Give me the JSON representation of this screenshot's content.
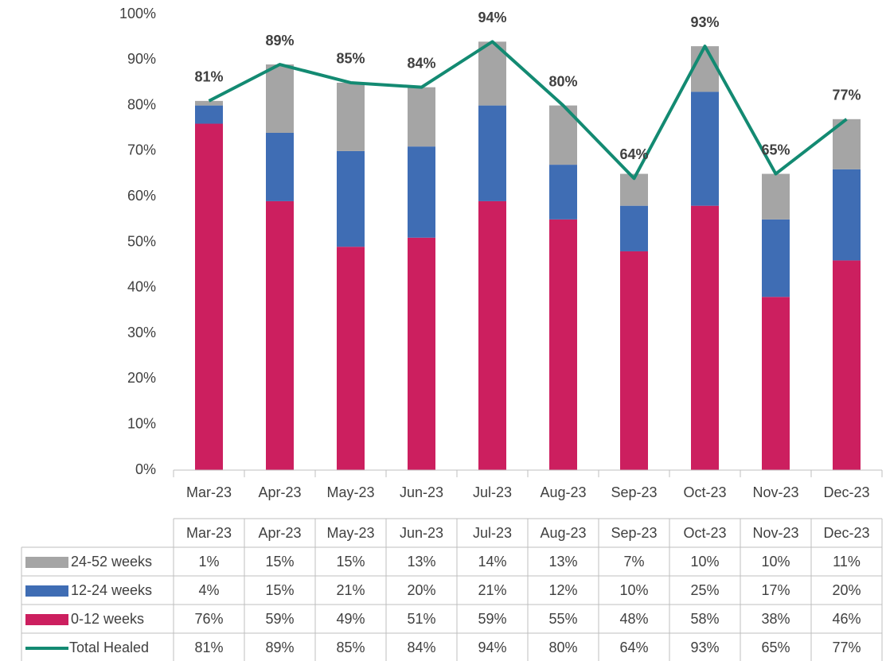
{
  "chart_data": {
    "type": "bar",
    "categories": [
      "Mar-23",
      "Apr-23",
      "May-23",
      "Jun-23",
      "Jul-23",
      "Aug-23",
      "Sep-23",
      "Oct-23",
      "Nov-23",
      "Dec-23"
    ],
    "series": [
      {
        "name": "0-12 weeks",
        "type": "bar",
        "color": "#cc1f5f",
        "values": [
          76,
          59,
          49,
          51,
          59,
          55,
          48,
          58,
          38,
          46
        ],
        "value_labels": [
          "76%",
          "59%",
          "49%",
          "51%",
          "59%",
          "55%",
          "48%",
          "58%",
          "38%",
          "46%"
        ]
      },
      {
        "name": "12-24 weeks",
        "type": "bar",
        "color": "#3f6db4",
        "values": [
          4,
          15,
          21,
          20,
          21,
          12,
          10,
          25,
          17,
          20
        ],
        "value_labels": [
          "4%",
          "15%",
          "21%",
          "20%",
          "21%",
          "12%",
          "10%",
          "25%",
          "17%",
          "20%"
        ]
      },
      {
        "name": "24-52 weeks",
        "type": "bar",
        "color": "#a5a5a5",
        "values": [
          1,
          15,
          15,
          13,
          14,
          13,
          7,
          10,
          10,
          11
        ],
        "value_labels": [
          "1%",
          "15%",
          "15%",
          "13%",
          "14%",
          "13%",
          "7%",
          "10%",
          "10%",
          "11%"
        ]
      },
      {
        "name": "Total Healed",
        "type": "line",
        "color": "#138a72",
        "values": [
          81,
          89,
          85,
          84,
          94,
          80,
          64,
          93,
          65,
          77
        ],
        "value_labels": [
          "81%",
          "89%",
          "85%",
          "84%",
          "94%",
          "80%",
          "64%",
          "93%",
          "65%",
          "77%"
        ]
      }
    ],
    "ylim": [
      0,
      100
    ],
    "yticks": [
      {
        "value": 0,
        "label": "0%"
      },
      {
        "value": 10,
        "label": "10%"
      },
      {
        "value": 20,
        "label": "20%"
      },
      {
        "value": 30,
        "label": "30%"
      },
      {
        "value": 40,
        "label": "40%"
      },
      {
        "value": 50,
        "label": "50%"
      },
      {
        "value": 60,
        "label": "60%"
      },
      {
        "value": 70,
        "label": "70%"
      },
      {
        "value": 80,
        "label": "80%"
      },
      {
        "value": 90,
        "label": "90%"
      },
      {
        "value": 100,
        "label": "100%"
      }
    ],
    "grid": false
  }
}
